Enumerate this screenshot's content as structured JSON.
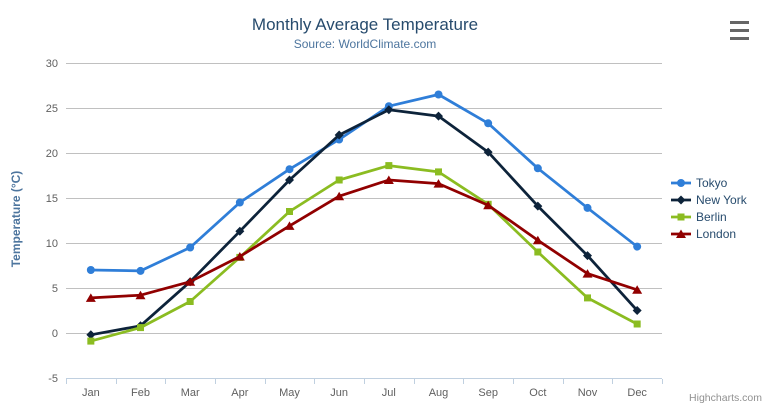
{
  "chart_data": {
    "type": "line",
    "title": "Monthly Average Temperature",
    "subtitle": "Source: WorldClimate.com",
    "xlabel": "",
    "ylabel": "Temperature (°C)",
    "categories": [
      "Jan",
      "Feb",
      "Mar",
      "Apr",
      "May",
      "Jun",
      "Jul",
      "Aug",
      "Sep",
      "Oct",
      "Nov",
      "Dec"
    ],
    "series": [
      {
        "name": "Tokyo",
        "color": "#2f7ed8",
        "marker": "circle",
        "values": [
          7.0,
          6.9,
          9.5,
          14.5,
          18.2,
          21.5,
          25.2,
          26.5,
          23.3,
          18.3,
          13.9,
          9.6
        ]
      },
      {
        "name": "New York",
        "color": "#0d233a",
        "marker": "diamond",
        "values": [
          -0.2,
          0.8,
          5.7,
          11.3,
          17.0,
          22.0,
          24.8,
          24.1,
          20.1,
          14.1,
          8.6,
          2.5
        ]
      },
      {
        "name": "Berlin",
        "color": "#8bbc21",
        "marker": "square",
        "values": [
          -0.9,
          0.6,
          3.5,
          8.4,
          13.5,
          17.0,
          18.6,
          17.9,
          14.3,
          9.0,
          3.9,
          1.0
        ]
      },
      {
        "name": "London",
        "color": "#910000",
        "marker": "triangle",
        "values": [
          3.9,
          4.2,
          5.7,
          8.5,
          11.9,
          15.2,
          17.0,
          16.6,
          14.2,
          10.3,
          6.6,
          4.8
        ]
      }
    ],
    "ylim": [
      -5,
      30
    ],
    "y_ticks": [
      -5,
      0,
      5,
      10,
      15,
      20,
      25,
      30
    ],
    "grid": true,
    "legend_position": "right"
  },
  "icons": {
    "context_menu_icon": "hamburger"
  },
  "credits": {
    "label": "Highcharts.com"
  },
  "colors": {
    "background": "#ffffff",
    "grid": "#c0c0c0",
    "axis_line": "#c0d0e0",
    "tick_label": "#606060",
    "title": "#274b6d",
    "subtitle": "#4d759e",
    "axis_title": "#4d759e",
    "legend_text": "#274b6d",
    "credits": "#909090",
    "menu_icon": "#666666"
  }
}
